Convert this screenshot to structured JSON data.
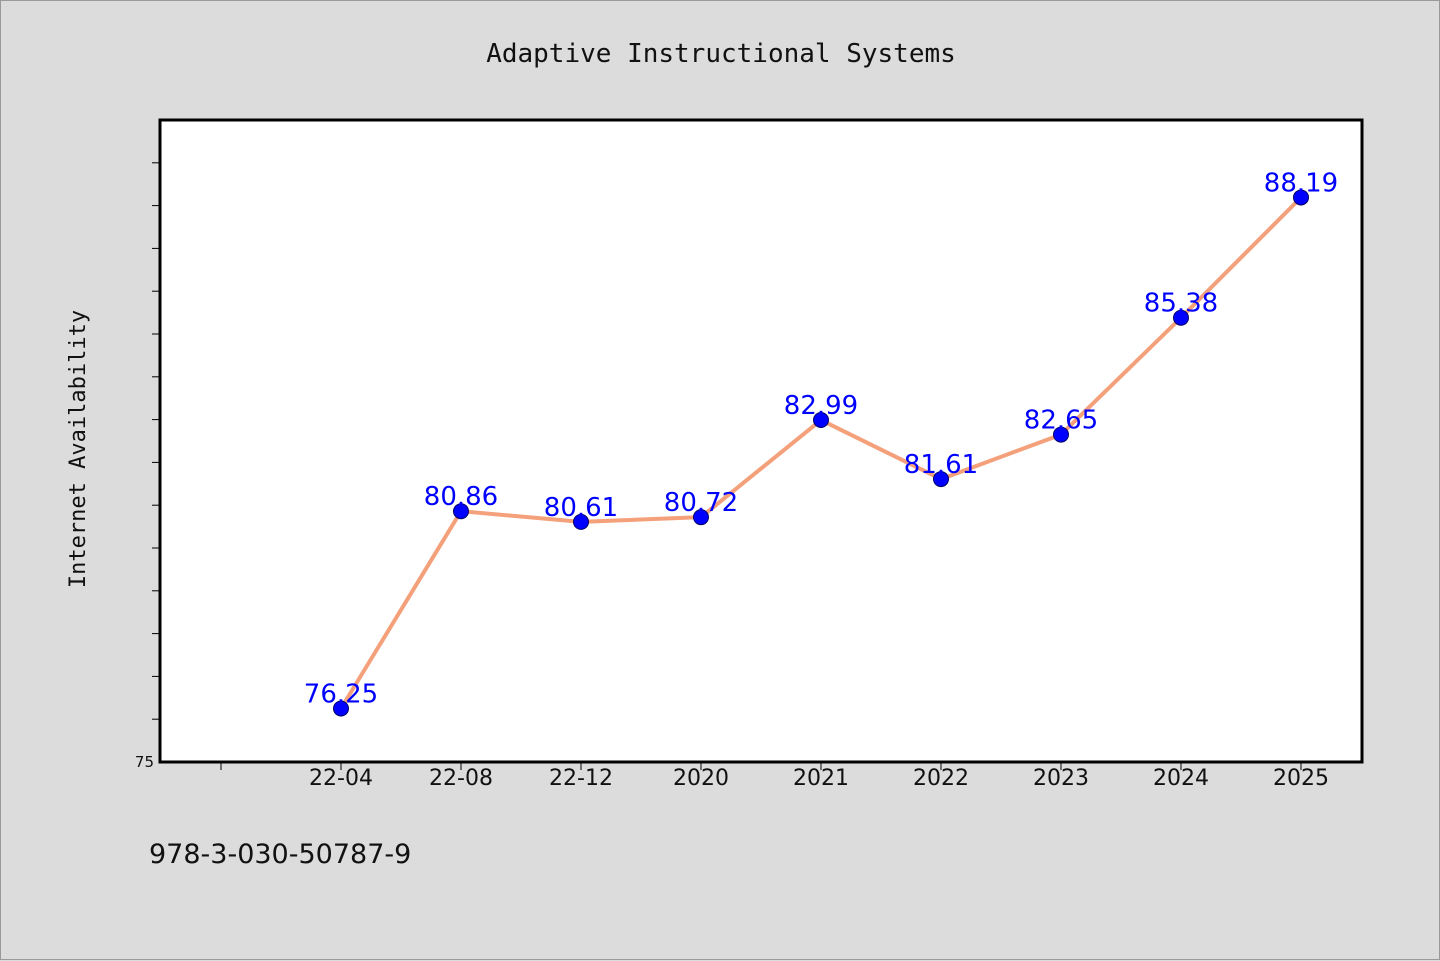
{
  "chart_data": {
    "type": "line",
    "title": "Adaptive Instructional Systems",
    "xlabel": "",
    "ylabel": "Internet Availability",
    "categories": [
      "22-04",
      "22-08",
      "22-12",
      "2020",
      "2021",
      "2022",
      "2023",
      "2024",
      "2025"
    ],
    "series": [
      {
        "values": [
          76.25,
          80.86,
          80.61,
          80.72,
          82.99,
          81.61,
          82.65,
          85.38,
          88.19
        ],
        "labels": [
          "76.25",
          "80.86",
          "80.61",
          "80.72",
          "82.99",
          "81.61",
          "82.65",
          "85.38",
          "88.19"
        ],
        "line_color": "#f4a07a",
        "marker_color": "#0000ff"
      }
    ],
    "ylim": [
      75,
      90
    ],
    "yticks_labeled": [
      "75"
    ],
    "grid": false,
    "legend": "none"
  },
  "footer_text": "978-3-030-50787-9"
}
